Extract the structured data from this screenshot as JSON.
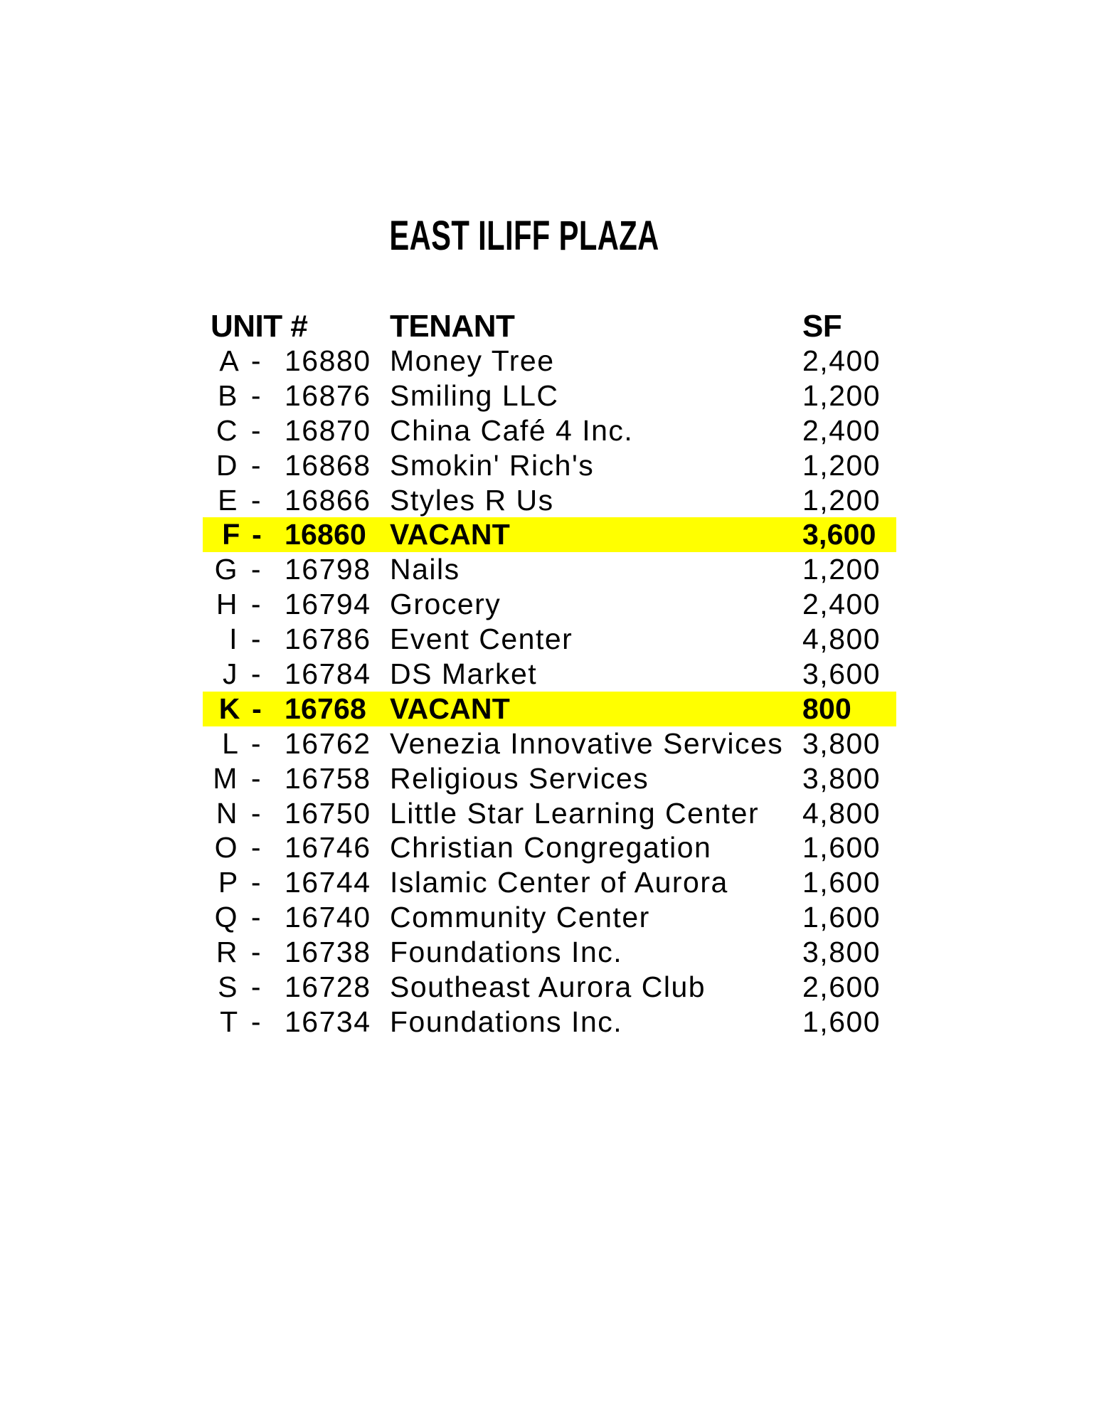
{
  "page": {
    "title": "EAST ILIFF PLAZA",
    "background_color": "#ffffff",
    "text_color": "#000000",
    "highlight_color": "#ffff00"
  },
  "table": {
    "headers": {
      "unit": "UNIT #",
      "tenant": "TENANT",
      "sf": "SF"
    },
    "rows": [
      {
        "unit": "A -",
        "number": "16880",
        "tenant": "Money Tree",
        "sf": "2,400",
        "vacant": false
      },
      {
        "unit": "B -",
        "number": "16876",
        "tenant": "Smiling LLC",
        "sf": "1,200",
        "vacant": false
      },
      {
        "unit": "C -",
        "number": "16870",
        "tenant": "China Café 4 Inc.",
        "sf": "2,400",
        "vacant": false
      },
      {
        "unit": "D -",
        "number": "16868",
        "tenant": "Smokin' Rich's",
        "sf": "1,200",
        "vacant": false
      },
      {
        "unit": "E -",
        "number": "16866",
        "tenant": "Styles R Us",
        "sf": "1,200",
        "vacant": false
      },
      {
        "unit": "F -",
        "number": "16860",
        "tenant": "VACANT",
        "sf": "3,600",
        "vacant": true
      },
      {
        "unit": "G -",
        "number": "16798",
        "tenant": "Nails",
        "sf": "1,200",
        "vacant": false
      },
      {
        "unit": "H -",
        "number": "16794",
        "tenant": "Grocery",
        "sf": "2,400",
        "vacant": false
      },
      {
        "unit": "I -",
        "number": "16786",
        "tenant": "Event Center",
        "sf": "4,800",
        "vacant": false
      },
      {
        "unit": "J -",
        "number": "16784",
        "tenant": "DS Market",
        "sf": "3,600",
        "vacant": false
      },
      {
        "unit": "K -",
        "number": "16768",
        "tenant": "VACANT",
        "sf": "800",
        "vacant": true
      },
      {
        "unit": "L -",
        "number": "16762",
        "tenant": "Venezia Innovative Services",
        "sf": "3,800",
        "vacant": false
      },
      {
        "unit": "M -",
        "number": "16758",
        "tenant": "Religious Services",
        "sf": "3,800",
        "vacant": false
      },
      {
        "unit": "N -",
        "number": "16750",
        "tenant": "Little Star Learning Center",
        "sf": "4,800",
        "vacant": false
      },
      {
        "unit": "O -",
        "number": "16746",
        "tenant": "Christian Congregation",
        "sf": "1,600",
        "vacant": false
      },
      {
        "unit": "P -",
        "number": "16744",
        "tenant": "Islamic Center of Aurora",
        "sf": "1,600",
        "vacant": false
      },
      {
        "unit": "Q -",
        "number": "16740",
        "tenant": "Community Center",
        "sf": "1,600",
        "vacant": false
      },
      {
        "unit": "R -",
        "number": "16738",
        "tenant": "Foundations Inc.",
        "sf": "3,800",
        "vacant": false
      },
      {
        "unit": "S -",
        "number": "16728",
        "tenant": "Southeast Aurora Club",
        "sf": "2,600",
        "vacant": false
      },
      {
        "unit": "T -",
        "number": "16734",
        "tenant": "Foundations Inc.",
        "sf": "1,600",
        "vacant": false
      }
    ]
  }
}
